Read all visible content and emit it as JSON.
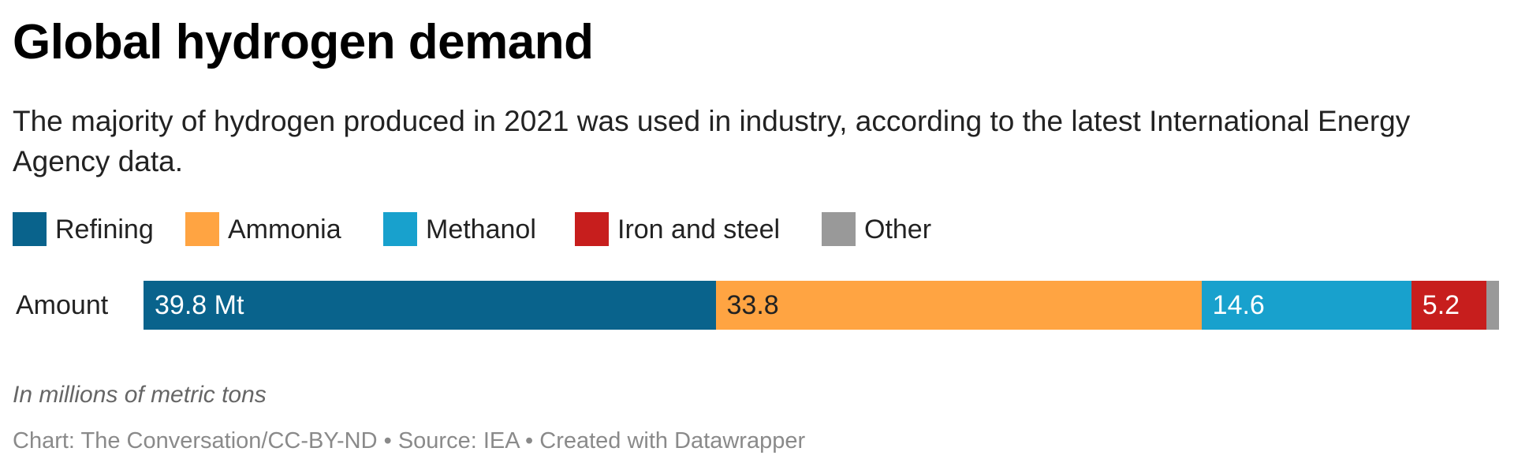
{
  "title": "Global hydrogen demand",
  "subtitle": "The majority of hydrogen produced in 2021 was used in industry, according to the latest International Energy Agency data.",
  "notes": "In millions of metric tons",
  "byline": "Chart: The Conversation/CC-BY-ND • Source: IEA • Created with Datawrapper",
  "chart_data": {
    "type": "bar",
    "orientation": "horizontal-stacked",
    "title": "Global hydrogen demand",
    "categories": [
      "Amount"
    ],
    "legend_placement": "top-left",
    "grid": false,
    "series": [
      {
        "name": "Refining",
        "values": [
          39.8
        ],
        "label": "39.8 Mt",
        "color": "#09638c",
        "label_color": "#ffffff"
      },
      {
        "name": "Ammonia",
        "values": [
          33.8
        ],
        "label": "33.8",
        "color": "#ffa442",
        "label_color": "#222222"
      },
      {
        "name": "Methanol",
        "values": [
          14.6
        ],
        "label": "14.6",
        "color": "#18a1cd",
        "label_color": "#ffffff"
      },
      {
        "name": "Iron and steel",
        "values": [
          5.2
        ],
        "label": "5.2",
        "color": "#c71e1d",
        "label_color": "#ffffff"
      },
      {
        "name": "Other",
        "values": [
          0.9
        ],
        "label": "",
        "color": "#999999",
        "label_color": "#ffffff"
      }
    ]
  }
}
